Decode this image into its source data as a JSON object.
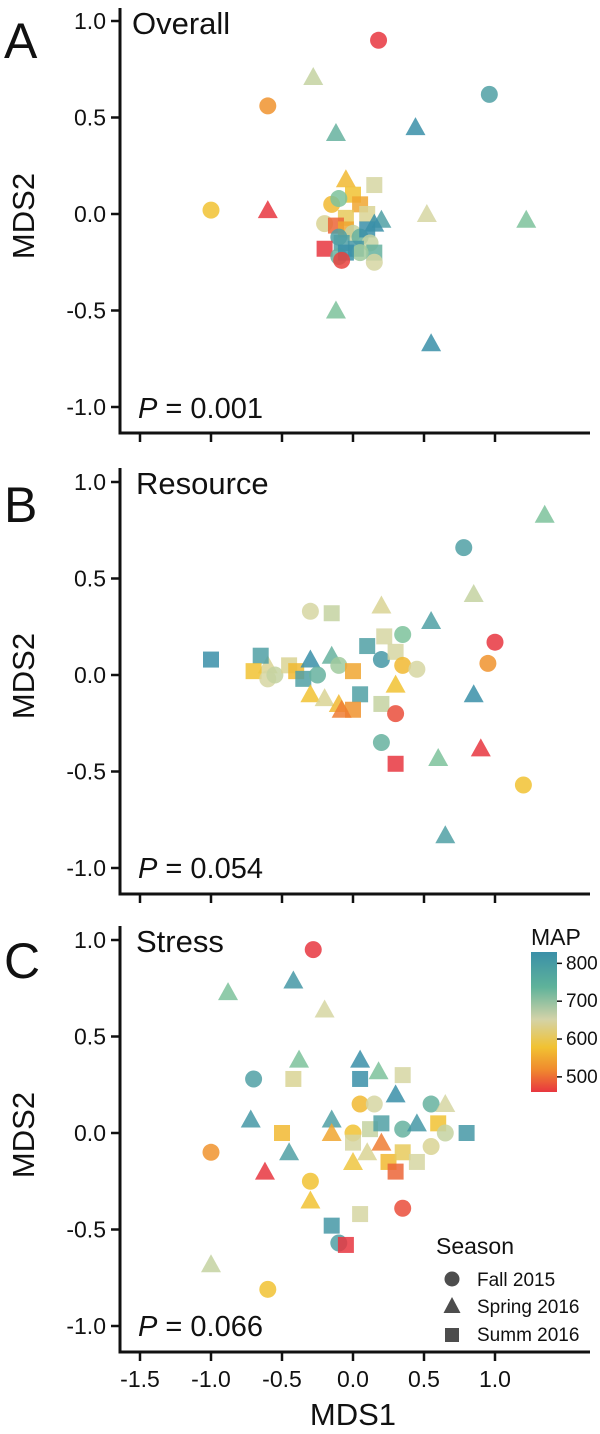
{
  "chart_data": [
    {
      "type": "scatter",
      "panel": "A",
      "title": "Overall",
      "xlabel": "MDS1",
      "ylabel": "MDS2",
      "xlim": [
        -1.65,
        1.65
      ],
      "ylim": [
        -1.1,
        1.1
      ],
      "yticks": [
        "-1.0",
        "-0.5",
        "0.0",
        "0.5",
        "1.0"
      ],
      "p_prefix": "P",
      "p_value": " = 0.001",
      "points": [
        {
          "x": 0.18,
          "y": 0.9,
          "shape": "circle",
          "map": 480
        },
        {
          "x": 0.96,
          "y": 0.62,
          "shape": "circle",
          "map": 780
        },
        {
          "x": -0.28,
          "y": 0.71,
          "shape": "triangle",
          "map": 700
        },
        {
          "x": -0.6,
          "y": 0.56,
          "shape": "circle",
          "map": 560
        },
        {
          "x": -0.12,
          "y": 0.42,
          "shape": "triangle",
          "map": 760
        },
        {
          "x": 0.44,
          "y": 0.45,
          "shape": "triangle",
          "map": 800
        },
        {
          "x": -1.0,
          "y": 0.02,
          "shape": "circle",
          "map": 610
        },
        {
          "x": -0.6,
          "y": 0.02,
          "shape": "triangle",
          "map": 480
        },
        {
          "x": 0.52,
          "y": 0.0,
          "shape": "triangle",
          "map": 690
        },
        {
          "x": 1.22,
          "y": -0.03,
          "shape": "triangle",
          "map": 740
        },
        {
          "x": -0.12,
          "y": -0.5,
          "shape": "triangle",
          "map": 740
        },
        {
          "x": 0.55,
          "y": -0.67,
          "shape": "triangle",
          "map": 800
        },
        {
          "x": -0.05,
          "y": 0.18,
          "shape": "triangle",
          "map": 600
        },
        {
          "x": 0.0,
          "y": 0.1,
          "shape": "square",
          "map": 610
        },
        {
          "x": 0.15,
          "y": 0.15,
          "shape": "square",
          "map": 690
        },
        {
          "x": -0.15,
          "y": 0.05,
          "shape": "circle",
          "map": 600
        },
        {
          "x": -0.1,
          "y": 0.08,
          "shape": "circle",
          "map": 740
        },
        {
          "x": 0.05,
          "y": 0.05,
          "shape": "square",
          "map": 580
        },
        {
          "x": 0.1,
          "y": 0.0,
          "shape": "square",
          "map": 680
        },
        {
          "x": -0.05,
          "y": -0.02,
          "shape": "square",
          "map": 640
        },
        {
          "x": 0.2,
          "y": -0.03,
          "shape": "triangle",
          "map": 780
        },
        {
          "x": 0.15,
          "y": -0.05,
          "shape": "triangle",
          "map": 800
        },
        {
          "x": -0.2,
          "y": -0.05,
          "shape": "circle",
          "map": 680
        },
        {
          "x": -0.12,
          "y": -0.06,
          "shape": "square",
          "map": 520
        },
        {
          "x": -0.05,
          "y": -0.08,
          "shape": "square",
          "map": 580
        },
        {
          "x": 0.0,
          "y": -0.1,
          "shape": "circle",
          "map": 700
        },
        {
          "x": 0.05,
          "y": -0.12,
          "shape": "circle",
          "map": 760
        },
        {
          "x": 0.1,
          "y": -0.08,
          "shape": "square",
          "map": 800
        },
        {
          "x": -0.1,
          "y": -0.12,
          "shape": "circle",
          "map": 780
        },
        {
          "x": 0.12,
          "y": -0.15,
          "shape": "circle",
          "map": 700
        },
        {
          "x": -0.08,
          "y": -0.15,
          "shape": "square",
          "map": 780
        },
        {
          "x": 0.02,
          "y": -0.18,
          "shape": "square",
          "map": 790
        },
        {
          "x": 0.15,
          "y": -0.2,
          "shape": "square",
          "map": 760
        },
        {
          "x": -0.2,
          "y": -0.18,
          "shape": "square",
          "map": 470
        },
        {
          "x": -0.1,
          "y": -0.22,
          "shape": "circle",
          "map": 760
        },
        {
          "x": 0.05,
          "y": -0.2,
          "shape": "circle",
          "map": 720
        },
        {
          "x": -0.05,
          "y": -0.2,
          "shape": "square",
          "map": 800
        },
        {
          "x": 0.15,
          "y": -0.25,
          "shape": "circle",
          "map": 690
        },
        {
          "x": -0.08,
          "y": -0.24,
          "shape": "circle",
          "map": 490
        }
      ]
    },
    {
      "type": "scatter",
      "panel": "B",
      "title": "Resource",
      "xlabel": "MDS1",
      "ylabel": "MDS2",
      "xlim": [
        -1.65,
        1.65
      ],
      "ylim": [
        -1.1,
        1.1
      ],
      "yticks": [
        "-1.0",
        "-0.5",
        "0.0",
        "0.5",
        "1.0"
      ],
      "p_prefix": "P",
      "p_value": " = 0.054",
      "points": [
        {
          "x": 1.35,
          "y": 0.83,
          "shape": "triangle",
          "map": 740
        },
        {
          "x": 0.78,
          "y": 0.66,
          "shape": "circle",
          "map": 780
        },
        {
          "x": 0.85,
          "y": 0.42,
          "shape": "triangle",
          "map": 700
        },
        {
          "x": 0.55,
          "y": 0.28,
          "shape": "triangle",
          "map": 780
        },
        {
          "x": 1.0,
          "y": 0.17,
          "shape": "circle",
          "map": 480
        },
        {
          "x": 0.95,
          "y": 0.06,
          "shape": "circle",
          "map": 560
        },
        {
          "x": 0.85,
          "y": -0.1,
          "shape": "triangle",
          "map": 800
        },
        {
          "x": 0.9,
          "y": -0.38,
          "shape": "triangle",
          "map": 480
        },
        {
          "x": 0.6,
          "y": -0.43,
          "shape": "triangle",
          "map": 740
        },
        {
          "x": 1.2,
          "y": -0.57,
          "shape": "circle",
          "map": 610
        },
        {
          "x": 0.65,
          "y": -0.83,
          "shape": "triangle",
          "map": 780
        },
        {
          "x": -1.0,
          "y": 0.08,
          "shape": "square",
          "map": 800
        },
        {
          "x": -0.3,
          "y": 0.33,
          "shape": "circle",
          "map": 690
        },
        {
          "x": -0.15,
          "y": 0.32,
          "shape": "square",
          "map": 700
        },
        {
          "x": 0.2,
          "y": 0.36,
          "shape": "triangle",
          "map": 680
        },
        {
          "x": 0.22,
          "y": 0.2,
          "shape": "square",
          "map": 690
        },
        {
          "x": 0.35,
          "y": 0.21,
          "shape": "circle",
          "map": 740
        },
        {
          "x": -0.6,
          "y": 0.05,
          "shape": "triangle",
          "map": 680
        },
        {
          "x": -0.65,
          "y": 0.1,
          "shape": "square",
          "map": 780
        },
        {
          "x": -0.7,
          "y": 0.02,
          "shape": "square",
          "map": 610
        },
        {
          "x": -0.6,
          "y": -0.02,
          "shape": "circle",
          "map": 690
        },
        {
          "x": -0.55,
          "y": 0.0,
          "shape": "circle",
          "map": 700
        },
        {
          "x": -0.45,
          "y": 0.05,
          "shape": "square",
          "map": 680
        },
        {
          "x": -0.4,
          "y": 0.02,
          "shape": "square",
          "map": 600
        },
        {
          "x": -0.3,
          "y": 0.08,
          "shape": "triangle",
          "map": 800
        },
        {
          "x": -0.35,
          "y": -0.02,
          "shape": "square",
          "map": 780
        },
        {
          "x": -0.25,
          "y": 0.0,
          "shape": "circle",
          "map": 760
        },
        {
          "x": -0.15,
          "y": 0.1,
          "shape": "triangle",
          "map": 760
        },
        {
          "x": -0.1,
          "y": 0.05,
          "shape": "circle",
          "map": 720
        },
        {
          "x": 0.0,
          "y": 0.02,
          "shape": "square",
          "map": 580
        },
        {
          "x": 0.1,
          "y": 0.15,
          "shape": "square",
          "map": 780
        },
        {
          "x": 0.2,
          "y": 0.08,
          "shape": "circle",
          "map": 790
        },
        {
          "x": 0.3,
          "y": 0.12,
          "shape": "square",
          "map": 690
        },
        {
          "x": 0.35,
          "y": 0.05,
          "shape": "circle",
          "map": 600
        },
        {
          "x": 0.45,
          "y": 0.03,
          "shape": "circle",
          "map": 690
        },
        {
          "x": 0.3,
          "y": -0.05,
          "shape": "triangle",
          "map": 610
        },
        {
          "x": -0.3,
          "y": -0.1,
          "shape": "triangle",
          "map": 610
        },
        {
          "x": -0.2,
          "y": -0.12,
          "shape": "triangle",
          "map": 680
        },
        {
          "x": -0.1,
          "y": -0.15,
          "shape": "triangle",
          "map": 600
        },
        {
          "x": 0.05,
          "y": -0.1,
          "shape": "square",
          "map": 780
        },
        {
          "x": 0.0,
          "y": -0.18,
          "shape": "square",
          "map": 560
        },
        {
          "x": -0.08,
          "y": -0.18,
          "shape": "triangle",
          "map": 540
        },
        {
          "x": 0.2,
          "y": -0.15,
          "shape": "square",
          "map": 700
        },
        {
          "x": 0.3,
          "y": -0.2,
          "shape": "circle",
          "map": 500
        },
        {
          "x": 0.2,
          "y": -0.35,
          "shape": "circle",
          "map": 760
        },
        {
          "x": 0.3,
          "y": -0.46,
          "shape": "square",
          "map": 470
        }
      ]
    },
    {
      "type": "scatter",
      "panel": "C",
      "title": "Stress",
      "xlabel": "MDS1",
      "ylabel": "MDS2",
      "xlim": [
        -1.65,
        1.65
      ],
      "ylim": [
        -1.1,
        1.1
      ],
      "xticks": [
        "-1.5",
        "-1.0",
        "-0.5",
        "0.0",
        "0.5",
        "1.0"
      ],
      "yticks": [
        "-1.0",
        "-0.5",
        "0.0",
        "0.5",
        "1.0"
      ],
      "p_prefix": "P",
      "p_value": " = 0.066",
      "points": [
        {
          "x": -0.28,
          "y": 0.95,
          "shape": "circle",
          "map": 480
        },
        {
          "x": -0.88,
          "y": 0.73,
          "shape": "triangle",
          "map": 740
        },
        {
          "x": -0.42,
          "y": 0.79,
          "shape": "triangle",
          "map": 790
        },
        {
          "x": -0.2,
          "y": 0.64,
          "shape": "triangle",
          "map": 690
        },
        {
          "x": -0.38,
          "y": 0.38,
          "shape": "triangle",
          "map": 740
        },
        {
          "x": -0.7,
          "y": 0.28,
          "shape": "circle",
          "map": 780
        },
        {
          "x": -0.42,
          "y": 0.28,
          "shape": "square",
          "map": 680
        },
        {
          "x": -0.72,
          "y": 0.07,
          "shape": "triangle",
          "map": 790
        },
        {
          "x": -1.0,
          "y": -0.1,
          "shape": "circle",
          "map": 560
        },
        {
          "x": -0.62,
          "y": -0.2,
          "shape": "triangle",
          "map": 480
        },
        {
          "x": -0.45,
          "y": -0.1,
          "shape": "triangle",
          "map": 780
        },
        {
          "x": -0.5,
          "y": 0.0,
          "shape": "square",
          "map": 600
        },
        {
          "x": -0.3,
          "y": -0.25,
          "shape": "circle",
          "map": 610
        },
        {
          "x": -0.3,
          "y": -0.35,
          "shape": "triangle",
          "map": 610
        },
        {
          "x": -0.15,
          "y": -0.48,
          "shape": "square",
          "map": 790
        },
        {
          "x": -0.1,
          "y": -0.57,
          "shape": "circle",
          "map": 780
        },
        {
          "x": -0.05,
          "y": -0.58,
          "shape": "square",
          "map": 470
        },
        {
          "x": -1.0,
          "y": -0.68,
          "shape": "triangle",
          "map": 700
        },
        {
          "x": -0.6,
          "y": -0.81,
          "shape": "circle",
          "map": 610
        },
        {
          "x": 0.05,
          "y": -0.42,
          "shape": "square",
          "map": 690
        },
        {
          "x": 0.35,
          "y": -0.39,
          "shape": "circle",
          "map": 500
        },
        {
          "x": -0.15,
          "y": 0.07,
          "shape": "triangle",
          "map": 780
        },
        {
          "x": -0.15,
          "y": 0.0,
          "shape": "triangle",
          "map": 580
        },
        {
          "x": 0.05,
          "y": 0.38,
          "shape": "triangle",
          "map": 800
        },
        {
          "x": 0.18,
          "y": 0.32,
          "shape": "triangle",
          "map": 740
        },
        {
          "x": 0.05,
          "y": 0.28,
          "shape": "square",
          "map": 800
        },
        {
          "x": 0.35,
          "y": 0.3,
          "shape": "square",
          "map": 690
        },
        {
          "x": 0.3,
          "y": 0.2,
          "shape": "triangle",
          "map": 800
        },
        {
          "x": 0.55,
          "y": 0.15,
          "shape": "circle",
          "map": 760
        },
        {
          "x": 0.65,
          "y": 0.15,
          "shape": "triangle",
          "map": 690
        },
        {
          "x": 0.6,
          "y": 0.05,
          "shape": "square",
          "map": 610
        },
        {
          "x": 0.65,
          "y": 0.0,
          "shape": "circle",
          "map": 700
        },
        {
          "x": 0.8,
          "y": 0.0,
          "shape": "square",
          "map": 790
        },
        {
          "x": 0.55,
          "y": -0.07,
          "shape": "circle",
          "map": 680
        },
        {
          "x": 0.05,
          "y": 0.15,
          "shape": "circle",
          "map": 600
        },
        {
          "x": 0.15,
          "y": 0.15,
          "shape": "circle",
          "map": 690
        },
        {
          "x": 0.0,
          "y": 0.0,
          "shape": "circle",
          "map": 610
        },
        {
          "x": 0.12,
          "y": 0.02,
          "shape": "square",
          "map": 700
        },
        {
          "x": 0.2,
          "y": 0.05,
          "shape": "square",
          "map": 780
        },
        {
          "x": 0.35,
          "y": 0.02,
          "shape": "circle",
          "map": 760
        },
        {
          "x": 0.45,
          "y": 0.05,
          "shape": "triangle",
          "map": 790
        },
        {
          "x": 0.0,
          "y": -0.05,
          "shape": "square",
          "map": 690
        },
        {
          "x": 0.1,
          "y": -0.1,
          "shape": "triangle",
          "map": 680
        },
        {
          "x": 0.2,
          "y": -0.05,
          "shape": "triangle",
          "map": 540
        },
        {
          "x": 0.25,
          "y": -0.15,
          "shape": "square",
          "map": 600
        },
        {
          "x": 0.3,
          "y": -0.2,
          "shape": "square",
          "map": 520
        },
        {
          "x": 0.35,
          "y": -0.1,
          "shape": "square",
          "map": 640
        },
        {
          "x": 0.45,
          "y": -0.15,
          "shape": "square",
          "map": 690
        },
        {
          "x": 0.0,
          "y": -0.15,
          "shape": "triangle",
          "map": 620
        }
      ]
    }
  ],
  "colorbar": {
    "title": "MAP",
    "ticks": [
      "800",
      "700",
      "600",
      "500"
    ],
    "tick_values": [
      800,
      700,
      600,
      500
    ],
    "range": [
      460,
      830
    ],
    "stops": [
      "#3a8fa8",
      "#5fb29a",
      "#d3d3a8",
      "#f1c232",
      "#f08a2e",
      "#e8363f"
    ]
  },
  "legend": {
    "title": "Season",
    "items": [
      {
        "label": "Fall 2015",
        "shape": "circle"
      },
      {
        "label": "Spring 2016",
        "shape": "triangle"
      },
      {
        "label": "Summ 2016",
        "shape": "square"
      }
    ]
  },
  "colors": {
    "axis": "#111111",
    "marker_gray": "#4d4d4d",
    "ramp": [
      {
        "map": 480,
        "color": "#e8363f"
      },
      {
        "map": 560,
        "color": "#f0932e"
      },
      {
        "map": 610,
        "color": "#f1c232"
      },
      {
        "map": 690,
        "color": "#d6d6a2"
      },
      {
        "map": 740,
        "color": "#7cc29b"
      },
      {
        "map": 800,
        "color": "#3a8fa8"
      }
    ]
  }
}
